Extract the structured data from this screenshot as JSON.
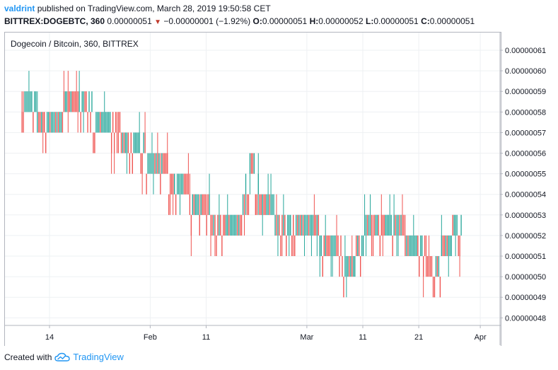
{
  "header": {
    "author": "valdrint",
    "published": "published on TradingView.com, March 28, 2019 19:50:58 CET",
    "symbol": "BITTREX:DOGEBTC, 360",
    "last": "0.00000051",
    "change_arrow": "▼",
    "change": "−0.00000001 (−1.92%)",
    "o_label": "O:",
    "o_value": "0.00000051",
    "h_label": "H:",
    "h_value": "0.00000052",
    "l_label": "L:",
    "l_value": "0.00000051",
    "c_label": "C:",
    "c_value": "0.00000051"
  },
  "footer": {
    "created_with": "Created with",
    "brand": "TradingView",
    "logo_icon": "tradingview-cloud-icon"
  },
  "colors": {
    "up": "#26a69a",
    "down": "#ef5350",
    "axis_text": "#131722",
    "link": "#2196f3"
  },
  "chart_data": {
    "type": "candlestick",
    "title": "Dogecoin / Bitcoin, 360, BITTREX",
    "ylim": [
      4.78e-07,
      6.15e-07
    ],
    "yticks": [
      "0.00000061",
      "0.00000060",
      "0.00000059",
      "0.00000058",
      "0.00000057",
      "0.00000056",
      "0.00000055",
      "0.00000054",
      "0.00000053",
      "0.00000052",
      "0.00000051",
      "0.00000050",
      "0.00000049",
      "0.00000048"
    ],
    "ytick_values": [
      61,
      60,
      59,
      58,
      57,
      56,
      55,
      54,
      53,
      52,
      51,
      50,
      49,
      48
    ],
    "price_unit": "1e-8 BTC",
    "xlim": [
      "2019-01-09",
      "2019-04-02"
    ],
    "xticks": [
      {
        "label": "14",
        "date": "2019-01-14"
      },
      {
        "label": "Feb",
        "date": "2019-02-01"
      },
      {
        "label": "11",
        "date": "2019-02-11"
      },
      {
        "label": "Mar",
        "date": "2019-03-01"
      },
      {
        "label": "11",
        "date": "2019-03-11"
      },
      {
        "label": "21",
        "date": "2019-03-21"
      },
      {
        "label": "Apr",
        "date": "2019-04-01"
      }
    ],
    "grid": true,
    "trend_levels": [
      {
        "date": "2019-01-09",
        "level": 58
      },
      {
        "date": "2019-01-14",
        "level": 57
      },
      {
        "date": "2019-01-19",
        "level": 58
      },
      {
        "date": "2019-01-24",
        "level": 57
      },
      {
        "date": "2019-01-29",
        "level": 56
      },
      {
        "date": "2019-02-02",
        "level": 55
      },
      {
        "date": "2019-02-06",
        "level": 54
      },
      {
        "date": "2019-02-10",
        "level": 53
      },
      {
        "date": "2019-02-13",
        "level": 52
      },
      {
        "date": "2019-02-17",
        "level": 52
      },
      {
        "date": "2019-02-19",
        "level": 55
      },
      {
        "date": "2019-02-21",
        "level": 53
      },
      {
        "date": "2019-02-25",
        "level": 52
      },
      {
        "date": "2019-03-01",
        "level": 52
      },
      {
        "date": "2019-03-05",
        "level": 51
      },
      {
        "date": "2019-03-09",
        "level": 50
      },
      {
        "date": "2019-03-12",
        "level": 52
      },
      {
        "date": "2019-03-17",
        "level": 52
      },
      {
        "date": "2019-03-20",
        "level": 51
      },
      {
        "date": "2019-03-24",
        "level": 50
      },
      {
        "date": "2019-03-28",
        "level": 52
      }
    ]
  }
}
